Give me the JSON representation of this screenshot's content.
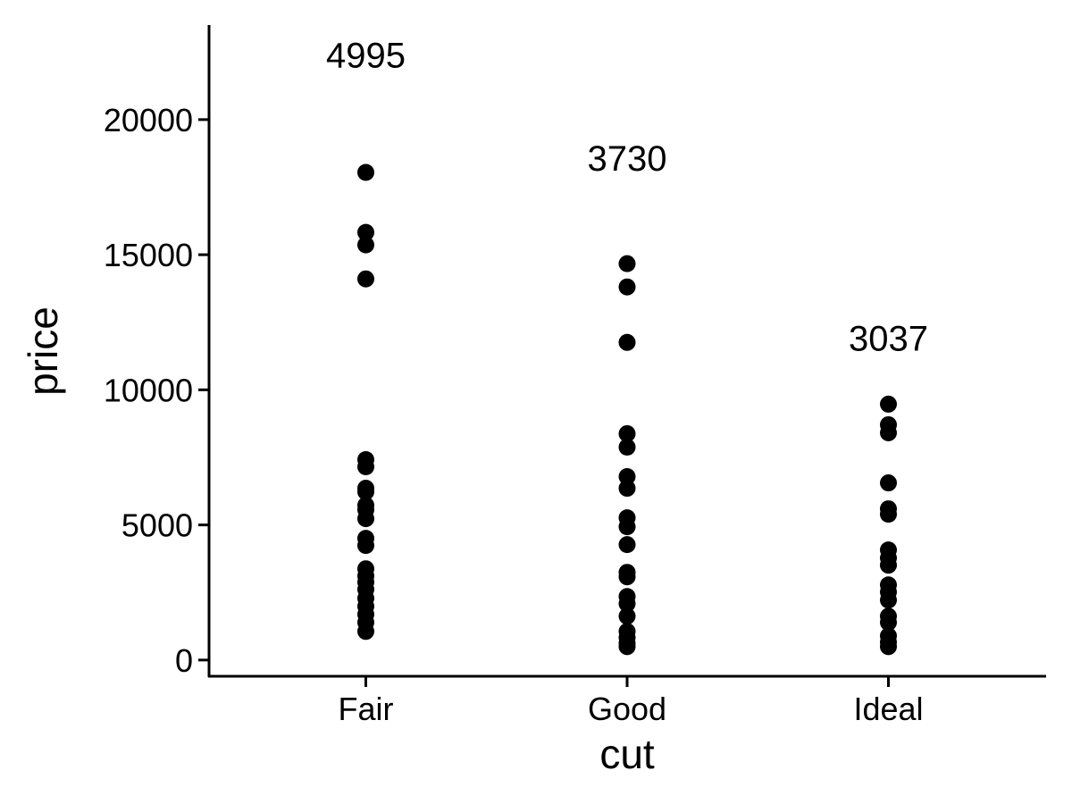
{
  "chart_data": {
    "type": "scatter",
    "xlabel": "cut",
    "ylabel": "price",
    "categories": [
      "Fair",
      "Good",
      "Ideal"
    ],
    "ylim": [
      -600,
      23500
    ],
    "yticks": [
      0,
      5000,
      10000,
      15000,
      20000
    ],
    "ytick_labels": [
      "0",
      "5000",
      "10000",
      "15000",
      "20000"
    ],
    "grid": false,
    "point_color": "#000000",
    "series": [
      {
        "category": "Fair",
        "annotation": "4995",
        "values": [
          18045,
          15826,
          15363,
          14105,
          7417,
          7152,
          6357,
          6225,
          5728,
          5563,
          5232,
          4503,
          4238,
          3377,
          3112,
          2881,
          2616,
          2285,
          1987,
          1689,
          1391,
          1060
        ]
      },
      {
        "category": "Good",
        "annotation": "3730",
        "values": [
          14668,
          13807,
          11754,
          8377,
          7880,
          6788,
          6357,
          5264,
          4933,
          4271,
          3245,
          3079,
          2351,
          2086,
          1622,
          1060,
          828,
          629,
          497
        ]
      },
      {
        "category": "Ideal",
        "annotation": "3037",
        "values": [
          9469,
          8708,
          8410,
          6556,
          5596,
          5397,
          4073,
          3775,
          3510,
          2781,
          2516,
          2218,
          1622,
          1391,
          894,
          662,
          497
        ]
      }
    ]
  }
}
